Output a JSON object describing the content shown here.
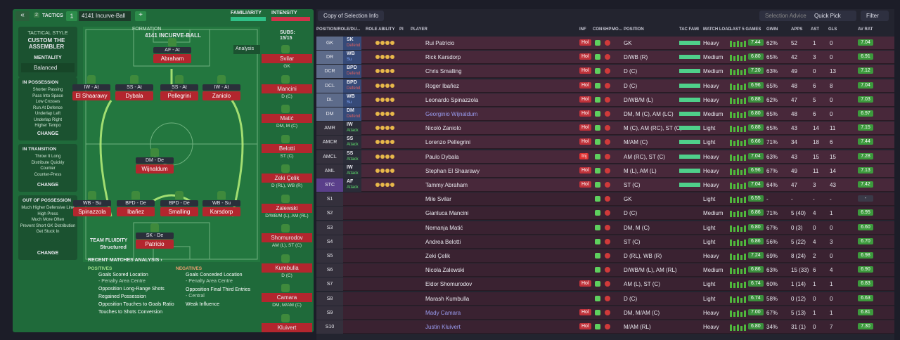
{
  "header": {
    "back": "«",
    "tactic_number": "2",
    "tactics": "TACTICS",
    "slot": "1",
    "formation_name": "4141 Incurve-Ball",
    "add": "+",
    "familiarity": "FAMILIARITY",
    "intensity": "INTENSITY"
  },
  "sidebar": {
    "tactical_style_label": "TACTICAL STYLE",
    "tactical_style": "CUSTOM THE ASSEMBLER",
    "mentality_label": "MENTALITY",
    "mentality": "Balanced",
    "sections": [
      {
        "title": "IN POSSESSION",
        "items": [
          "Shorter Passing",
          "Pass Into Space",
          "Low Crosses",
          "Run At Defence",
          "Underlap Left",
          "Underlap Right",
          "Higher Tempo"
        ],
        "change": "CHANGE"
      },
      {
        "title": "IN TRANSITION",
        "items": [
          "Throw It Long",
          "Distribute Quickly",
          "Counter",
          "Counter-Press"
        ],
        "change": "CHANGE"
      },
      {
        "title": "OUT OF POSSESSION",
        "items": [
          "Much Higher Defensive Line",
          "High Press",
          "Much More Often",
          "Prevent Short GK Distribution",
          "Get Stuck In"
        ],
        "change": "CHANGE"
      }
    ]
  },
  "pitch": {
    "formation_label": "FORMATION",
    "formation": "4141 INCURVE-BALL",
    "subs_label": "SUBS:",
    "subs": "15/15",
    "analysis": "Analysis",
    "team_fluidity_label": "TEAM FLUIDITY",
    "team_fluidity": "Structured",
    "players": [
      {
        "role": "AF - At",
        "name": "Abraham"
      },
      {
        "role": "IW - At",
        "name": "El Shaarawy"
      },
      {
        "role": "SS - At",
        "name": "Dybala"
      },
      {
        "role": "SS - At",
        "name": "Pellegrini"
      },
      {
        "role": "IW - At",
        "name": "Zaniolo"
      },
      {
        "role": "DM - De",
        "name": "Wijnaldum"
      },
      {
        "role": "WB - Su",
        "name": "Spinazzola"
      },
      {
        "role": "BPD - De",
        "name": "Ibañez"
      },
      {
        "role": "BPD - De",
        "name": "Smalling"
      },
      {
        "role": "WB - Su",
        "name": "Karsdorp"
      },
      {
        "role": "SK - De",
        "name": "Patrício"
      }
    ],
    "substitutes": [
      {
        "name": "Svilar",
        "position": "GK"
      },
      {
        "name": "Mancini",
        "position": "D (C)"
      },
      {
        "name": "Matić",
        "position": "DM, M (C)"
      },
      {
        "name": "Belotti",
        "position": "ST (C)"
      },
      {
        "name": "Zeki Çelik",
        "position": "D (RL), WB (R)"
      },
      {
        "name": "Zalewski",
        "position": "D/WB/M (L), AM (RL)"
      },
      {
        "name": "Shomurodov",
        "position": "AM (L), ST (C)"
      },
      {
        "name": "Kumbulla",
        "position": "D (C)"
      },
      {
        "name": "Camara",
        "position": "DM, M/AM (C)"
      },
      {
        "name": "Kluivert",
        "position": ""
      }
    ]
  },
  "recent": {
    "title": "RECENT MATCHES ANALYSIS ›",
    "positives_label": "POSITIVES",
    "positives": [
      [
        "Goals Scored Location",
        "- Penalty Area Centre"
      ],
      [
        "Opposition Long-Range Shots"
      ],
      [
        "Regained Possession"
      ],
      [
        "Opposition Touches to Goals Ratio"
      ],
      [
        "Touches to Shots Conversion"
      ]
    ],
    "negatives_label": "NEGATIVES",
    "negatives": [
      [
        "Goals Conceded Location",
        "- Penalty Area Centre"
      ],
      [
        "Opposition Final Third Entries",
        "- Central"
      ],
      [
        "Weak Influence"
      ]
    ]
  },
  "toolbar": {
    "view": "Copy of Selection Info",
    "selection_advice": "Selection Advice",
    "quick_pick": "Quick Pick",
    "filter": "Filter"
  },
  "table": {
    "columns": [
      "POSITION/ROLE/DU...",
      "ROLE ABILITY",
      "PI",
      "PLAYER",
      "INF",
      "CON",
      "SHP",
      "MO...",
      "POSITION",
      "TAC FAMI",
      "MATCH LOAD",
      "LAST 5 GAMES",
      "GWIN",
      "APPS",
      "AST",
      "GLS",
      "AV RAT"
    ],
    "rows": [
      {
        "slot": "GK",
        "role": "SK",
        "duty": "Defend",
        "name": "Rui Patrício",
        "inf": "Hol",
        "position": "GK",
        "load": "Heavy",
        "last5": "7.44",
        "gwin": "62%",
        "apps": "52",
        "ast": "1",
        "gls": "0",
        "avrat": "7.04"
      },
      {
        "slot": "DR",
        "role": "WB",
        "duty": "Su",
        "name": "Rick Karsdorp",
        "inf": "Hol",
        "position": "D/WB (R)",
        "load": "Medium",
        "last5": "6.80",
        "gwin": "65%",
        "apps": "42",
        "ast": "3",
        "gls": "0",
        "avrat": "6.91"
      },
      {
        "slot": "DCR",
        "role": "BPD",
        "duty": "Defend",
        "name": "Chris Smalling",
        "inf": "Hol",
        "position": "D (C)",
        "load": "Medium",
        "last5": "7.20",
        "gwin": "63%",
        "apps": "49",
        "ast": "0",
        "gls": "13",
        "avrat": "7.12"
      },
      {
        "slot": "DCL",
        "role": "BPD",
        "duty": "Defend",
        "name": "Roger Ibañez",
        "inf": "Hol",
        "position": "D (C)",
        "load": "Heavy",
        "last5": "6.96",
        "gwin": "65%",
        "apps": "48",
        "ast": "6",
        "gls": "8",
        "avrat": "7.04"
      },
      {
        "slot": "DL",
        "role": "WB",
        "duty": "Su",
        "name": "Leonardo Spinazzola",
        "inf": "Hol",
        "position": "D/WB/M (L)",
        "load": "Heavy",
        "last5": "6.88",
        "gwin": "62%",
        "apps": "47",
        "ast": "5",
        "gls": "0",
        "avrat": "7.03"
      },
      {
        "slot": "DM",
        "role": "DM",
        "duty": "Defend",
        "name": "Georginio Wijnaldum",
        "name_color": "#9a9cf0",
        "inf": "Hol",
        "position": "DM, M (C), AM (LC)",
        "load": "Medium",
        "last5": "6.80",
        "gwin": "65%",
        "apps": "48",
        "ast": "6",
        "gls": "0",
        "avrat": "6.97"
      },
      {
        "slot": "AMR",
        "role": "IW",
        "duty": "Attack",
        "name": "Nicolò Zaniolo",
        "inf": "Hol",
        "position": "M (C), AM (RC), ST (C)",
        "load": "Light",
        "last5": "6.88",
        "gwin": "65%",
        "apps": "43",
        "ast": "14",
        "gls": "11",
        "avrat": "7.15"
      },
      {
        "slot": "AMCR",
        "role": "SS",
        "duty": "Attack",
        "name": "Lorenzo Pellegrini",
        "inf": "Hol",
        "position": "M/AM (C)",
        "load": "Light",
        "last5": "6.66",
        "gwin": "71%",
        "apps": "34",
        "ast": "18",
        "gls": "6",
        "avrat": "7.44"
      },
      {
        "slot": "AMCL",
        "role": "SS",
        "duty": "Attack",
        "name": "Paulo Dybala",
        "inf": "Inj",
        "position": "AM (RC), ST (C)",
        "load": "Heavy",
        "last5": "7.04",
        "gwin": "63%",
        "apps": "43",
        "ast": "15",
        "gls": "15",
        "avrat": "7.28"
      },
      {
        "slot": "AML",
        "role": "IW",
        "duty": "Attack",
        "name": "Stephan El Shaarawy",
        "inf": "Hol",
        "position": "M (L), AM (L)",
        "load": "Heavy",
        "last5": "6.96",
        "gwin": "67%",
        "apps": "49",
        "ast": "11",
        "gls": "14",
        "avrat": "7.13"
      },
      {
        "slot": "STC",
        "role": "AF",
        "duty": "Attack",
        "name": "Tammy Abraham",
        "inf": "Hol",
        "position": "ST (C)",
        "load": "Heavy",
        "last5": "7.04",
        "gwin": "64%",
        "apps": "47",
        "ast": "3",
        "gls": "43",
        "avrat": "7.42"
      },
      {
        "slot": "S1",
        "name": "Mile Svilar",
        "position": "GK",
        "load": "Light",
        "last5": "6.55",
        "gwin": "-",
        "apps": "-",
        "ast": "-",
        "gls": "-",
        "avrat": "-"
      },
      {
        "slot": "S2",
        "name": "Gianluca Mancini",
        "position": "D (C)",
        "load": "Medium",
        "last5": "6.86",
        "gwin": "71%",
        "apps": "5 (40)",
        "ast": "4",
        "gls": "1",
        "avrat": "6.95"
      },
      {
        "slot": "S3",
        "name": "Nemanja Matić",
        "position": "DM, M (C)",
        "load": "Light",
        "last5": "6.80",
        "gwin": "67%",
        "apps": "0 (3)",
        "ast": "0",
        "gls": "0",
        "avrat": "6.60"
      },
      {
        "slot": "S4",
        "name": "Andrea Belotti",
        "position": "ST (C)",
        "load": "Light",
        "last5": "6.86",
        "gwin": "56%",
        "apps": "5 (22)",
        "ast": "4",
        "gls": "3",
        "avrat": "6.70"
      },
      {
        "slot": "S5",
        "name": "Zeki Çelik",
        "position": "D (RL), WB (R)",
        "load": "Heavy",
        "last5": "7.24",
        "gwin": "69%",
        "apps": "8 (24)",
        "ast": "2",
        "gls": "0",
        "avrat": "6.98"
      },
      {
        "slot": "S6",
        "name": "Nicola Zalewski",
        "position": "D/WB/M (L), AM (RL)",
        "load": "Medium",
        "last5": "6.86",
        "gwin": "63%",
        "apps": "15 (33)",
        "ast": "6",
        "gls": "4",
        "avrat": "6.90"
      },
      {
        "slot": "S7",
        "name": "Eldor Shomurodov",
        "inf": "Hol",
        "position": "AM (L), ST (C)",
        "load": "Light",
        "last5": "6.74",
        "gwin": "60%",
        "apps": "1 (14)",
        "ast": "1",
        "gls": "1",
        "avrat": "6.83"
      },
      {
        "slot": "S8",
        "name": "Marash Kumbulla",
        "position": "D (C)",
        "load": "Light",
        "last5": "6.74",
        "gwin": "58%",
        "apps": "0 (12)",
        "ast": "0",
        "gls": "0",
        "avrat": "6.63"
      },
      {
        "slot": "S9",
        "name": "Mady Camara",
        "name_color": "#9a9cf0",
        "inf": "Hol",
        "position": "DM, M/AM (C)",
        "load": "Heavy",
        "last5": "7.00",
        "gwin": "67%",
        "apps": "5 (13)",
        "ast": "1",
        "gls": "1",
        "avrat": "6.81"
      },
      {
        "slot": "S10",
        "name": "Justin Kluivert",
        "name_color": "#9a9cf0",
        "inf": "Hol",
        "position": "M/AM (RL)",
        "load": "Heavy",
        "last5": "6.80",
        "gwin": "34%",
        "apps": "31 (1)",
        "ast": "0",
        "gls": "7",
        "avrat": "7.30"
      }
    ]
  }
}
